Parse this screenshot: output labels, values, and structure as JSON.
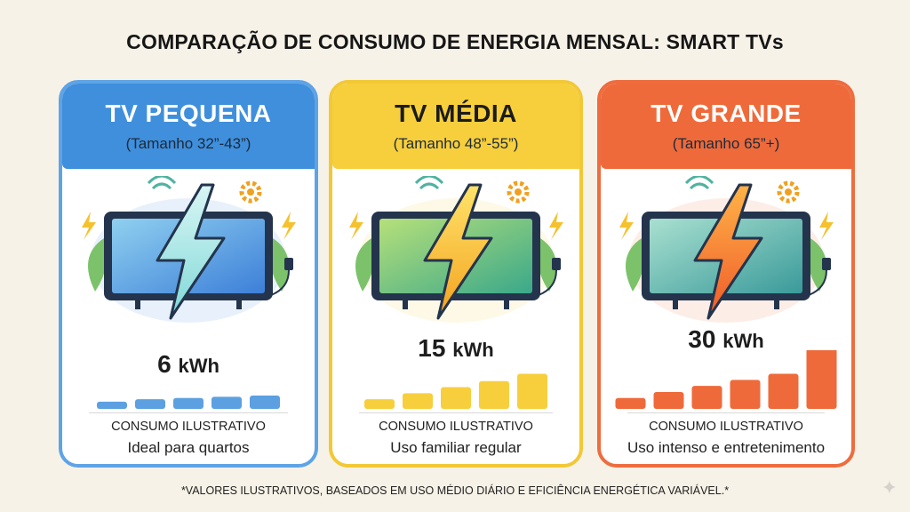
{
  "title": "COMPARAÇÃO DE CONSUMO DE ENERGIA MENSAL: SMART TVs",
  "cards": [
    {
      "name": "TV PEQUENA",
      "size": "(Tamanho 32”-43”)",
      "value": "6",
      "unit": "kWh",
      "label": "CONSUMO ILUSTRATIVO",
      "desc": "Ideal para quartos",
      "color": "#3f8fdc",
      "border": "#5ea3e6",
      "bar_levels": [
        12,
        16,
        18,
        20,
        22
      ]
    },
    {
      "name": "TV MÉDIA",
      "size": "(Tamanho 48”-55”)",
      "value": "15",
      "unit": "kWh",
      "label": "CONSUMO ILUSTRATIVO",
      "desc": "Uso familiar regular",
      "color": "#f7cf3c",
      "border": "#f2c835",
      "bar_levels": [
        16,
        26,
        36,
        46,
        58
      ]
    },
    {
      "name": "TV GRANDE",
      "size": "(Tamanho 65”+)",
      "value": "30",
      "unit": "kWh",
      "label": "CONSUMO ILUSTRATIVO",
      "desc": "Uso intenso e entretenimento",
      "color": "#ef6a3a",
      "border": "#ee6c3e",
      "bar_levels": [
        18,
        28,
        38,
        48,
        58,
        100
      ]
    }
  ],
  "footnote": "*VALORES ILUSTRATIVOS, BASEADOS EM USO MÉDIO DIÁRIO E EFICIÊNCIA ENERGÉTICA VARIÁVEL.*",
  "icons": [
    "tv-icon",
    "lightning-icon",
    "gear-icon",
    "plug-icon",
    "wifi-icon",
    "leaf-icon",
    "sparkle-icon"
  ]
}
